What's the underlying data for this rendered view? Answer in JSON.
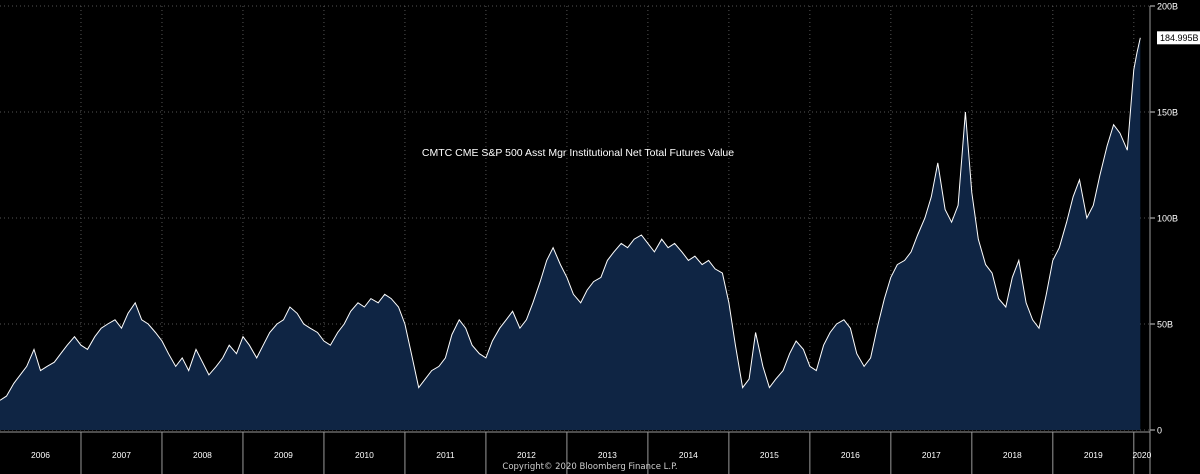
{
  "chart_data": {
    "type": "area",
    "title": "CMTC CME S&P 500 Asst Mgr Institutional Net Total Futures Value",
    "xlabel": "",
    "ylabel": "",
    "ylim": [
      0,
      200
    ],
    "y_unit": "billions",
    "y_ticks": [
      "200B",
      "150B",
      "100B",
      "50B",
      "0"
    ],
    "y_tick_values": [
      200,
      150,
      100,
      50,
      0
    ],
    "x_range": [
      2006.0,
      2020.2
    ],
    "x_ticks": [
      "2006",
      "2007",
      "2008",
      "2009",
      "2010",
      "2011",
      "2012",
      "2013",
      "2014",
      "2015",
      "2016",
      "2017",
      "2018",
      "2019",
      "2020"
    ],
    "grid": true,
    "last_value_label": "184.995B",
    "series": [
      {
        "name": "",
        "x": [
          2006.0,
          2006.08,
          2006.17,
          2006.25,
          2006.33,
          2006.42,
          2006.5,
          2006.58,
          2006.67,
          2006.75,
          2006.83,
          2006.92,
          2007.0,
          2007.08,
          2007.17,
          2007.25,
          2007.33,
          2007.42,
          2007.5,
          2007.58,
          2007.67,
          2007.75,
          2007.83,
          2007.92,
          2008.0,
          2008.08,
          2008.17,
          2008.25,
          2008.33,
          2008.42,
          2008.5,
          2008.58,
          2008.67,
          2008.75,
          2008.83,
          2008.92,
          2009.0,
          2009.08,
          2009.17,
          2009.25,
          2009.33,
          2009.42,
          2009.5,
          2009.58,
          2009.67,
          2009.75,
          2009.83,
          2009.92,
          2010.0,
          2010.08,
          2010.17,
          2010.25,
          2010.33,
          2010.42,
          2010.5,
          2010.58,
          2010.67,
          2010.75,
          2010.83,
          2010.92,
          2011.0,
          2011.08,
          2011.17,
          2011.25,
          2011.33,
          2011.42,
          2011.5,
          2011.58,
          2011.67,
          2011.75,
          2011.83,
          2011.92,
          2012.0,
          2012.08,
          2012.17,
          2012.25,
          2012.33,
          2012.42,
          2012.5,
          2012.58,
          2012.67,
          2012.75,
          2012.83,
          2012.92,
          2013.0,
          2013.08,
          2013.17,
          2013.25,
          2013.33,
          2013.42,
          2013.5,
          2013.58,
          2013.67,
          2013.75,
          2013.83,
          2013.92,
          2014.0,
          2014.08,
          2014.17,
          2014.25,
          2014.33,
          2014.42,
          2014.5,
          2014.58,
          2014.67,
          2014.75,
          2014.83,
          2014.92,
          2015.0,
          2015.08,
          2015.17,
          2015.25,
          2015.33,
          2015.42,
          2015.5,
          2015.58,
          2015.67,
          2015.75,
          2015.83,
          2015.92,
          2016.0,
          2016.08,
          2016.17,
          2016.25,
          2016.33,
          2016.42,
          2016.5,
          2016.58,
          2016.67,
          2016.75,
          2016.83,
          2016.92,
          2017.0,
          2017.08,
          2017.17,
          2017.25,
          2017.33,
          2017.42,
          2017.5,
          2017.58,
          2017.67,
          2017.75,
          2017.83,
          2017.92,
          2018.0,
          2018.08,
          2018.17,
          2018.25,
          2018.33,
          2018.42,
          2018.5,
          2018.58,
          2018.67,
          2018.75,
          2018.83,
          2018.92,
          2019.0,
          2019.08,
          2019.17,
          2019.25,
          2019.33,
          2019.42,
          2019.5,
          2019.58,
          2019.67,
          2019.75,
          2019.83,
          2019.92,
          2020.0,
          2020.04,
          2020.08
        ],
        "values": [
          14,
          16,
          22,
          26,
          30,
          38,
          28,
          30,
          32,
          36,
          40,
          44,
          40,
          38,
          44,
          48,
          50,
          52,
          48,
          55,
          60,
          52,
          50,
          46,
          42,
          36,
          30,
          34,
          28,
          38,
          32,
          26,
          30,
          34,
          40,
          36,
          44,
          40,
          34,
          40,
          46,
          50,
          52,
          58,
          55,
          50,
          48,
          46,
          42,
          40,
          46,
          50,
          56,
          60,
          58,
          62,
          60,
          64,
          62,
          58,
          50,
          36,
          20,
          24,
          28,
          30,
          34,
          45,
          52,
          48,
          40,
          36,
          34,
          42,
          48,
          52,
          56,
          48,
          52,
          60,
          70,
          80,
          86,
          78,
          72,
          64,
          60,
          66,
          70,
          72,
          80,
          84,
          88,
          86,
          90,
          92,
          88,
          84,
          90,
          86,
          88,
          84,
          80,
          82,
          78,
          80,
          76,
          74,
          60,
          40,
          20,
          24,
          46,
          30,
          20,
          24,
          28,
          36,
          42,
          38,
          30,
          28,
          40,
          46,
          50,
          52,
          48,
          36,
          30,
          34,
          48,
          62,
          72,
          78,
          80,
          84,
          92,
          100,
          110,
          126,
          104,
          98,
          106,
          150,
          112,
          90,
          78,
          74,
          62,
          58,
          72,
          80,
          60,
          52,
          48,
          64,
          80,
          86,
          98,
          110,
          118,
          100,
          106,
          120,
          134,
          144,
          140,
          132,
          170,
          178,
          185
        ]
      }
    ]
  }
}
